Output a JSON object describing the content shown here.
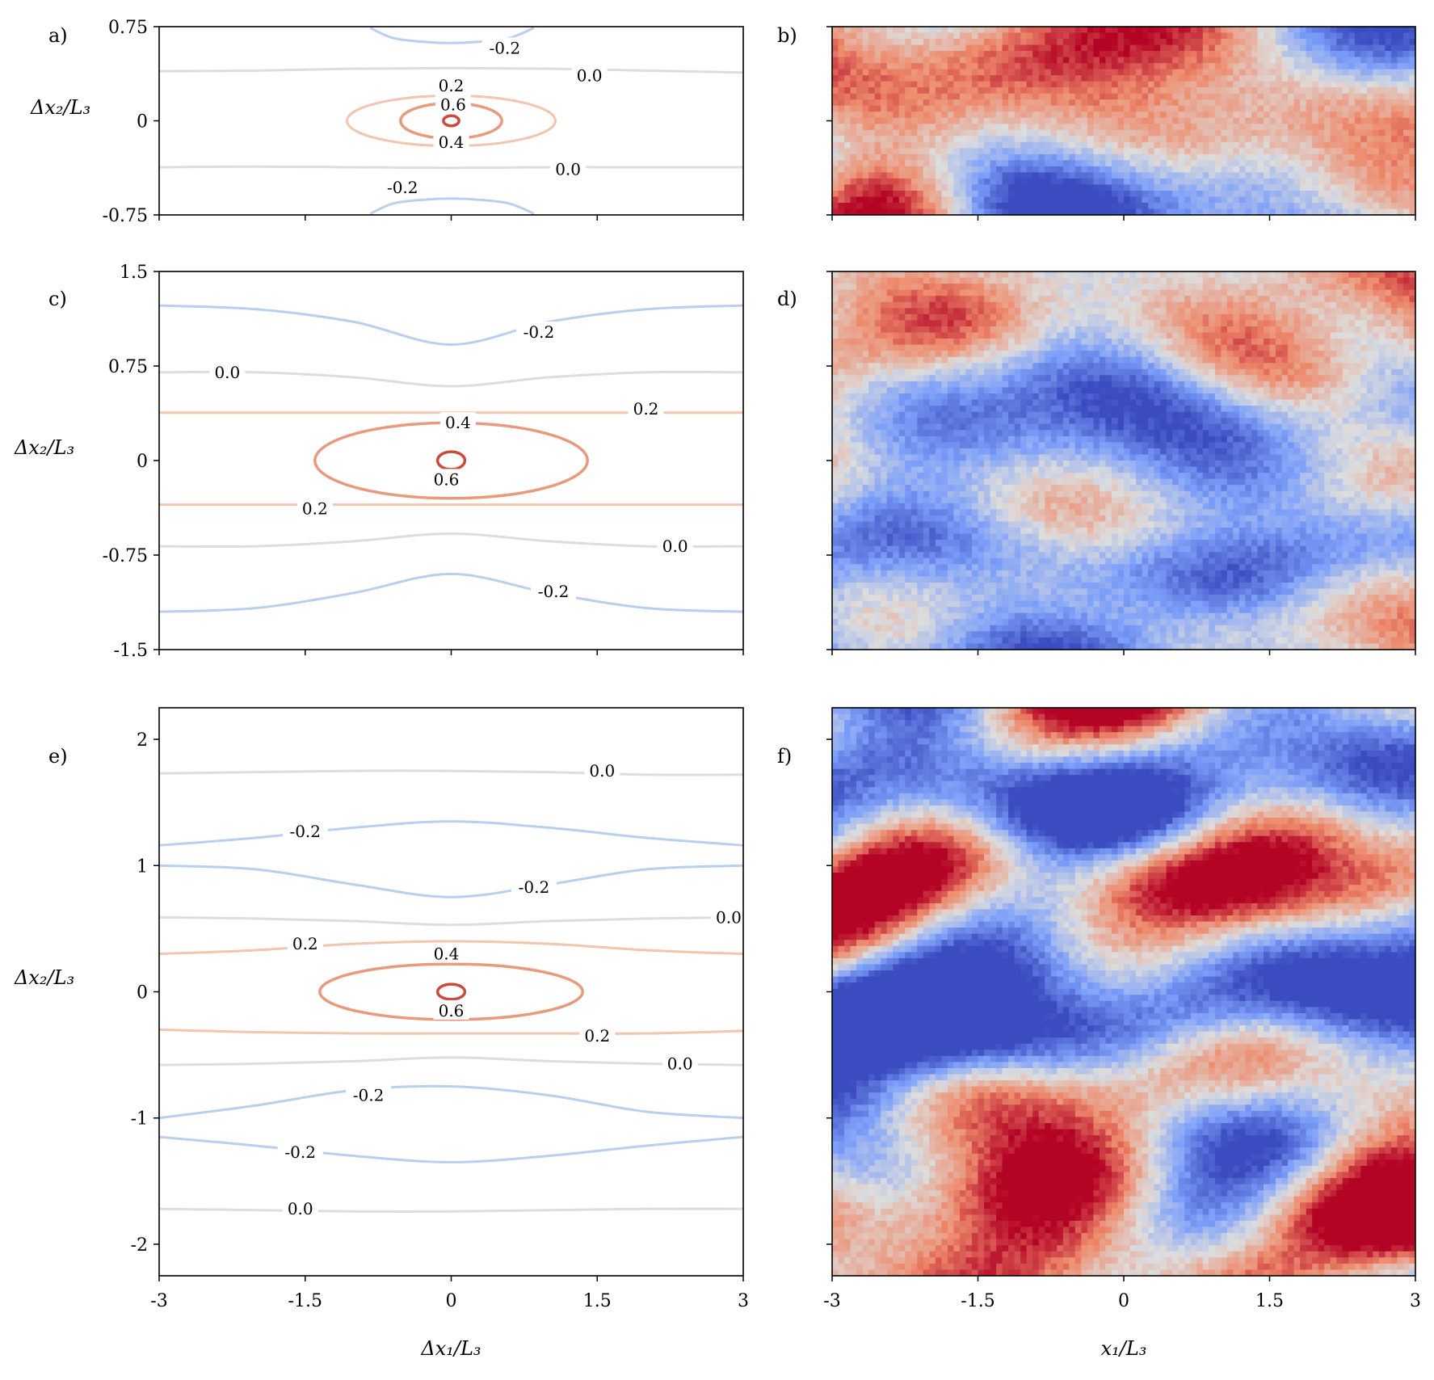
{
  "chart_data": [
    {
      "id": "a",
      "type": "contour",
      "panel_label": "a)",
      "xlim": [
        -3,
        3
      ],
      "ylim": [
        -0.75,
        0.75
      ],
      "xticks": [
        -3,
        -1.5,
        0,
        1.5,
        3
      ],
      "xtick_labels": [],
      "yticks": [
        -0.75,
        0,
        0.75
      ],
      "ytick_labels": [
        "-0.75",
        "0",
        "0.75"
      ],
      "ylabel": "Δx₂/L₃",
      "xlabel": "",
      "contours": [
        {
          "level": "0.0",
          "color": "#dddddd",
          "width": 3,
          "points": [
            [
              -3,
              0.395
            ],
            [
              -2,
              0.4
            ],
            [
              -1,
              0.415
            ],
            [
              0,
              0.42
            ],
            [
              1,
              0.415
            ],
            [
              2,
              0.4
            ],
            [
              3,
              0.385
            ]
          ],
          "label_at": [
            1.42,
            0.36
          ]
        },
        {
          "level": "0.0",
          "color": "#dddddd",
          "width": 3,
          "points": [
            [
              -3,
              -0.37
            ],
            [
              -2,
              -0.365
            ],
            [
              -1,
              -0.37
            ],
            [
              0,
              -0.375
            ],
            [
              1,
              -0.37
            ],
            [
              2,
              -0.37
            ],
            [
              3,
              -0.37
            ]
          ],
          "label_at": [
            1.2,
            -0.385
          ]
        },
        {
          "level": "-0.2",
          "color": "#b8cff2",
          "width": 3,
          "open": true,
          "points": [
            [
              -0.83,
              0.74
            ],
            [
              -0.6,
              0.66
            ],
            [
              -0.3,
              0.63
            ],
            [
              0,
              0.62
            ],
            [
              0.3,
              0.63
            ],
            [
              0.6,
              0.66
            ],
            [
              0.85,
              0.74
            ]
          ],
          "label_at": [
            0.55,
            0.58
          ]
        },
        {
          "level": "-0.2",
          "color": "#b8cff2",
          "width": 3,
          "open": true,
          "points": [
            [
              -0.83,
              -0.74
            ],
            [
              -0.6,
              -0.66
            ],
            [
              -0.3,
              -0.63
            ],
            [
              0,
              -0.62
            ],
            [
              0.3,
              -0.63
            ],
            [
              0.6,
              -0.66
            ],
            [
              0.85,
              -0.74
            ]
          ],
          "label_at": [
            -0.5,
            -0.53
          ]
        },
        {
          "level": "0.2",
          "color": "#f3c4ae",
          "width": 3,
          "ellipse": [
            0,
            0,
            1.07,
            0.2
          ],
          "label_at": [
            0,
            0.28
          ]
        },
        {
          "level": "0.4",
          "color": "#e99a7d",
          "width": 3.5,
          "ellipse": [
            0,
            0,
            0.52,
            0.14
          ],
          "label_at": [
            0,
            -0.17
          ]
        },
        {
          "level": "0.6",
          "color": "#cc4a3b",
          "width": 3.5,
          "ellipse": [
            0,
            0,
            0.08,
            0.04
          ],
          "label_at": [
            0.02,
            0.13
          ]
        }
      ]
    },
    {
      "id": "b",
      "type": "heatmap",
      "panel_label": "b)",
      "xlim": [
        -3,
        3
      ],
      "ylim": [
        -0.75,
        0.75
      ],
      "xtick_labels": [],
      "ytick_labels": [],
      "colormap": "coolwarm",
      "field_seed": 11,
      "bands": [
        {
          "y": 0.45,
          "s": 0.35
        },
        {
          "y": -0.45,
          "s": -0.5
        }
      ]
    },
    {
      "id": "c",
      "type": "contour",
      "panel_label": "c)",
      "xlim": [
        -3,
        3
      ],
      "ylim": [
        -1.5,
        1.5
      ],
      "xticks": [
        -3,
        -1.5,
        0,
        1.5,
        3
      ],
      "xtick_labels": [],
      "yticks": [
        -1.5,
        -0.75,
        0,
        0.75,
        1.5
      ],
      "ytick_labels": [
        "-1.5",
        "-0.75",
        "0",
        "0.75",
        "1.5"
      ],
      "ylabel": "Δx₂/L₃",
      "xlabel": "",
      "contours": [
        {
          "level": "-0.2",
          "color": "#b8cff2",
          "width": 3,
          "points": [
            [
              -3,
              1.23
            ],
            [
              -2,
              1.2
            ],
            [
              -1,
              1.1
            ],
            [
              0,
              0.92
            ],
            [
              1,
              1.1
            ],
            [
              2,
              1.2
            ],
            [
              3,
              1.23
            ]
          ],
          "label_at": [
            0.9,
            1.02
          ]
        },
        {
          "level": "0.0",
          "color": "#dddddd",
          "width": 3,
          "points": [
            [
              -3,
              0.7
            ],
            [
              -2,
              0.7
            ],
            [
              -1,
              0.66
            ],
            [
              0,
              0.59
            ],
            [
              1,
              0.66
            ],
            [
              2,
              0.7
            ],
            [
              3,
              0.7
            ]
          ],
          "label_at": [
            -2.3,
            0.7
          ]
        },
        {
          "level": "0.2",
          "color": "#f3c4ae",
          "width": 3,
          "points": [
            [
              -3,
              0.38
            ],
            [
              -2,
              0.38
            ],
            [
              -1,
              0.38
            ],
            [
              0,
              0.38
            ],
            [
              1,
              0.38
            ],
            [
              2,
              0.38
            ],
            [
              3,
              0.38
            ]
          ],
          "label_at": [
            2.0,
            0.41
          ]
        },
        {
          "level": "0.4",
          "color": "#e99a7d",
          "width": 3.5,
          "ellipse": [
            0,
            0,
            1.4,
            0.3
          ],
          "label_at": [
            0.07,
            0.3
          ]
        },
        {
          "level": "0.6",
          "color": "#cc4a3b",
          "width": 3.5,
          "ellipse": [
            0,
            0,
            0.14,
            0.07
          ],
          "label_at": [
            -0.05,
            -0.15
          ]
        },
        {
          "level": "0.2",
          "color": "#f3c4ae",
          "width": 3,
          "points": [
            [
              -3,
              -0.35
            ],
            [
              -2,
              -0.35
            ],
            [
              -1,
              -0.35
            ],
            [
              0,
              -0.35
            ],
            [
              1,
              -0.35
            ],
            [
              2,
              -0.35
            ],
            [
              3,
              -0.35
            ]
          ],
          "label_at": [
            -1.4,
            -0.38
          ]
        },
        {
          "level": "0.0",
          "color": "#dddddd",
          "width": 3,
          "points": [
            [
              -3,
              -0.68
            ],
            [
              -2,
              -0.68
            ],
            [
              -1,
              -0.64
            ],
            [
              0,
              -0.58
            ],
            [
              1,
              -0.64
            ],
            [
              2,
              -0.68
            ],
            [
              3,
              -0.68
            ]
          ],
          "label_at": [
            2.3,
            -0.68
          ]
        },
        {
          "level": "-0.2",
          "color": "#b8cff2",
          "width": 3,
          "points": [
            [
              -3,
              -1.2
            ],
            [
              -2,
              -1.17
            ],
            [
              -1,
              -1.05
            ],
            [
              0,
              -0.9
            ],
            [
              1,
              -1.05
            ],
            [
              2,
              -1.17
            ],
            [
              3,
              -1.2
            ]
          ],
          "label_at": [
            1.05,
            -1.04
          ]
        }
      ]
    },
    {
      "id": "d",
      "type": "heatmap",
      "panel_label": "d)",
      "xlim": [
        -3,
        3
      ],
      "ylim": [
        -1.5,
        1.5
      ],
      "xtick_labels": [],
      "ytick_labels": [],
      "colormap": "coolwarm",
      "field_seed": 23,
      "bands": [
        {
          "y": 0.9,
          "s": 0.5
        },
        {
          "y": -0.75,
          "s": -0.85
        },
        {
          "y": -1.3,
          "s": 0.3
        }
      ]
    },
    {
      "id": "e",
      "type": "contour",
      "panel_label": "e)",
      "xlim": [
        -3,
        3
      ],
      "ylim": [
        -2.25,
        2.25
      ],
      "xticks": [
        -3,
        -1.5,
        0,
        1.5,
        3
      ],
      "xtick_labels": [
        "-3",
        "-1.5",
        "0",
        "1.5",
        "3"
      ],
      "yticks": [
        -2,
        -1,
        0,
        1,
        2
      ],
      "ytick_labels": [
        "-2",
        "-1",
        "0",
        "1",
        "2"
      ],
      "ylabel": "Δx₂/L₃",
      "xlabel": "Δx₁/L₃",
      "contours": [
        {
          "level": "0.0",
          "color": "#dddddd",
          "width": 3,
          "points": [
            [
              -3,
              1.73
            ],
            [
              -2,
              1.74
            ],
            [
              -1,
              1.75
            ],
            [
              0,
              1.75
            ],
            [
              1,
              1.74
            ],
            [
              2,
              1.72
            ],
            [
              3,
              1.72
            ]
          ],
          "label_at": [
            1.55,
            1.75
          ]
        },
        {
          "level": "-0.2",
          "color": "#b8cff2",
          "width": 3,
          "points": [
            [
              -3,
              1.16
            ],
            [
              -2,
              1.22
            ],
            [
              -1,
              1.3
            ],
            [
              0,
              1.35
            ],
            [
              1,
              1.3
            ],
            [
              2,
              1.22
            ],
            [
              3,
              1.16
            ]
          ],
          "label_at": [
            -1.5,
            1.27
          ]
        },
        {
          "level": "-0.2",
          "color": "#b8cff2",
          "width": 3,
          "points": [
            [
              -3,
              1.0
            ],
            [
              -2,
              0.97
            ],
            [
              -1,
              0.85
            ],
            [
              0,
              0.75
            ],
            [
              1,
              0.85
            ],
            [
              2,
              0.97
            ],
            [
              3,
              1.0
            ]
          ],
          "label_at": [
            0.85,
            0.83
          ]
        },
        {
          "level": "0.0",
          "color": "#dddddd",
          "width": 3,
          "points": [
            [
              -3,
              0.59
            ],
            [
              -2,
              0.58
            ],
            [
              -1,
              0.56
            ],
            [
              0,
              0.53
            ],
            [
              1,
              0.56
            ],
            [
              2,
              0.58
            ],
            [
              3,
              0.59
            ]
          ],
          "label_at": [
            2.85,
            0.59
          ]
        },
        {
          "level": "0.2",
          "color": "#f3c4ae",
          "width": 3,
          "points": [
            [
              -3,
              0.3
            ],
            [
              -2,
              0.33
            ],
            [
              -1,
              0.38
            ],
            [
              0,
              0.4
            ],
            [
              1,
              0.38
            ],
            [
              2,
              0.33
            ],
            [
              3,
              0.3
            ]
          ],
          "label_at": [
            -1.5,
            0.38
          ]
        },
        {
          "level": "0.4",
          "color": "#e99a7d",
          "width": 3.5,
          "ellipse": [
            0,
            0,
            1.35,
            0.22
          ],
          "label_at": [
            -0.05,
            0.3
          ]
        },
        {
          "level": "0.6",
          "color": "#cc4a3b",
          "width": 3.5,
          "ellipse": [
            0,
            0,
            0.14,
            0.06
          ],
          "label_at": [
            0,
            -0.15
          ]
        },
        {
          "level": "0.2",
          "color": "#f3c4ae",
          "width": 3,
          "points": [
            [
              -3,
              -0.3
            ],
            [
              -2,
              -0.32
            ],
            [
              -1,
              -0.33
            ],
            [
              0,
              -0.33
            ],
            [
              1,
              -0.33
            ],
            [
              2,
              -0.33
            ],
            [
              3,
              -0.31
            ]
          ],
          "label_at": [
            1.5,
            -0.35
          ]
        },
        {
          "level": "0.0",
          "color": "#dddddd",
          "width": 3,
          "points": [
            [
              -3,
              -0.58
            ],
            [
              -2,
              -0.57
            ],
            [
              -1,
              -0.55
            ],
            [
              0,
              -0.52
            ],
            [
              1,
              -0.55
            ],
            [
              2,
              -0.57
            ],
            [
              3,
              -0.58
            ]
          ],
          "label_at": [
            2.35,
            -0.57
          ]
        },
        {
          "level": "-0.2",
          "color": "#b8cff2",
          "width": 3,
          "points": [
            [
              -3,
              -1.0
            ],
            [
              -2,
              -0.9
            ],
            [
              -1,
              -0.78
            ],
            [
              0,
              -0.75
            ],
            [
              1,
              -0.82
            ],
            [
              2,
              -0.95
            ],
            [
              3,
              -1.0
            ]
          ],
          "label_at": [
            -0.85,
            -0.82
          ]
        },
        {
          "level": "-0.2",
          "color": "#b8cff2",
          "width": 3,
          "points": [
            [
              -3,
              -1.15
            ],
            [
              -2,
              -1.22
            ],
            [
              -1,
              -1.3
            ],
            [
              0,
              -1.35
            ],
            [
              1,
              -1.3
            ],
            [
              2,
              -1.22
            ],
            [
              3,
              -1.15
            ]
          ],
          "label_at": [
            -1.55,
            -1.27
          ]
        },
        {
          "level": "0.0",
          "color": "#dddddd",
          "width": 3,
          "points": [
            [
              -3,
              -1.72
            ],
            [
              -2,
              -1.73
            ],
            [
              -1,
              -1.74
            ],
            [
              0,
              -1.74
            ],
            [
              1,
              -1.73
            ],
            [
              2,
              -1.72
            ],
            [
              3,
              -1.72
            ]
          ],
          "label_at": [
            -1.55,
            -1.72
          ]
        }
      ]
    },
    {
      "id": "f",
      "type": "heatmap",
      "panel_label": "f)",
      "xlim": [
        -3,
        3
      ],
      "ylim": [
        -2.25,
        2.25
      ],
      "xtick_labels": [
        "-3",
        "-1.5",
        "0",
        "1.5",
        "3"
      ],
      "ytick_labels": [],
      "xlabel": "x₁/L₃",
      "colormap": "coolwarm",
      "field_seed": 37,
      "bands": [
        {
          "y": 1.55,
          "s": -0.55
        },
        {
          "y": 0.9,
          "s": 0.6
        },
        {
          "y": -0.2,
          "s": -0.85
        },
        {
          "y": -1.6,
          "s": 0.65
        }
      ]
    }
  ]
}
